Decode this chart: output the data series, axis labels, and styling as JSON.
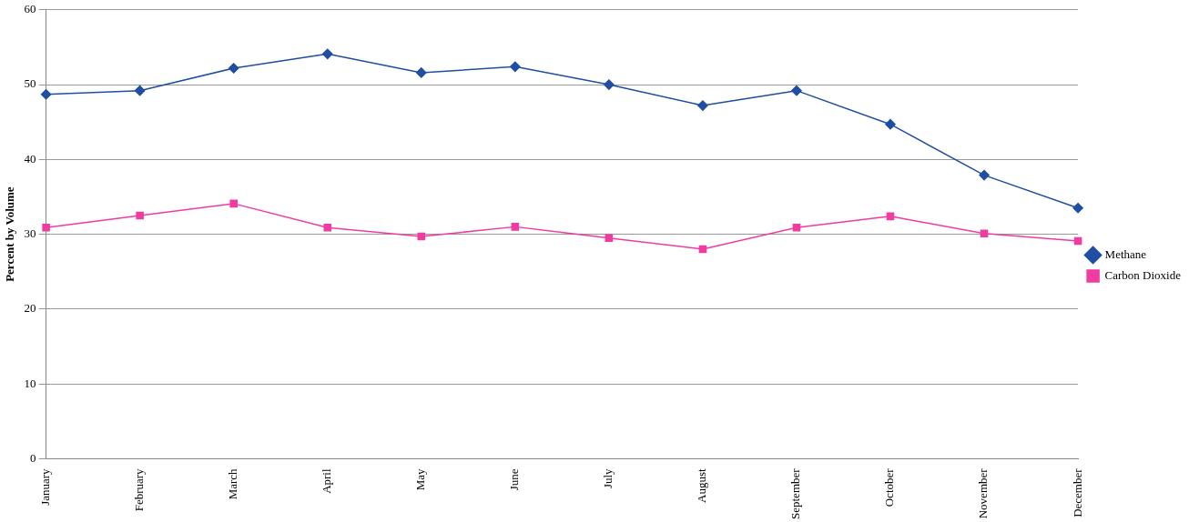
{
  "chart_data": {
    "type": "line",
    "ylabel": "Percent by Volume",
    "categories": [
      "January",
      "February",
      "March",
      "April",
      "May",
      "June",
      "July",
      "August",
      "September",
      "October",
      "November",
      "December"
    ],
    "series": [
      {
        "name": "Methane",
        "color": "#1f4ea3",
        "marker": "diamond",
        "values": [
          48.7,
          49.2,
          52.2,
          54.1,
          51.6,
          52.4,
          50.0,
          47.2,
          49.2,
          44.7,
          37.9,
          33.5
        ]
      },
      {
        "name": "Carbon Dioxide",
        "color": "#f03ca0",
        "marker": "square",
        "values": [
          30.9,
          32.5,
          34.1,
          30.9,
          29.7,
          31.0,
          29.5,
          28.0,
          30.9,
          32.4,
          30.1,
          29.1
        ]
      }
    ],
    "ylim": [
      0,
      60
    ],
    "yticks": [
      0,
      10,
      20,
      30,
      40,
      50,
      60
    ],
    "grid": "y",
    "legend": "right",
    "line_style": "solid"
  }
}
